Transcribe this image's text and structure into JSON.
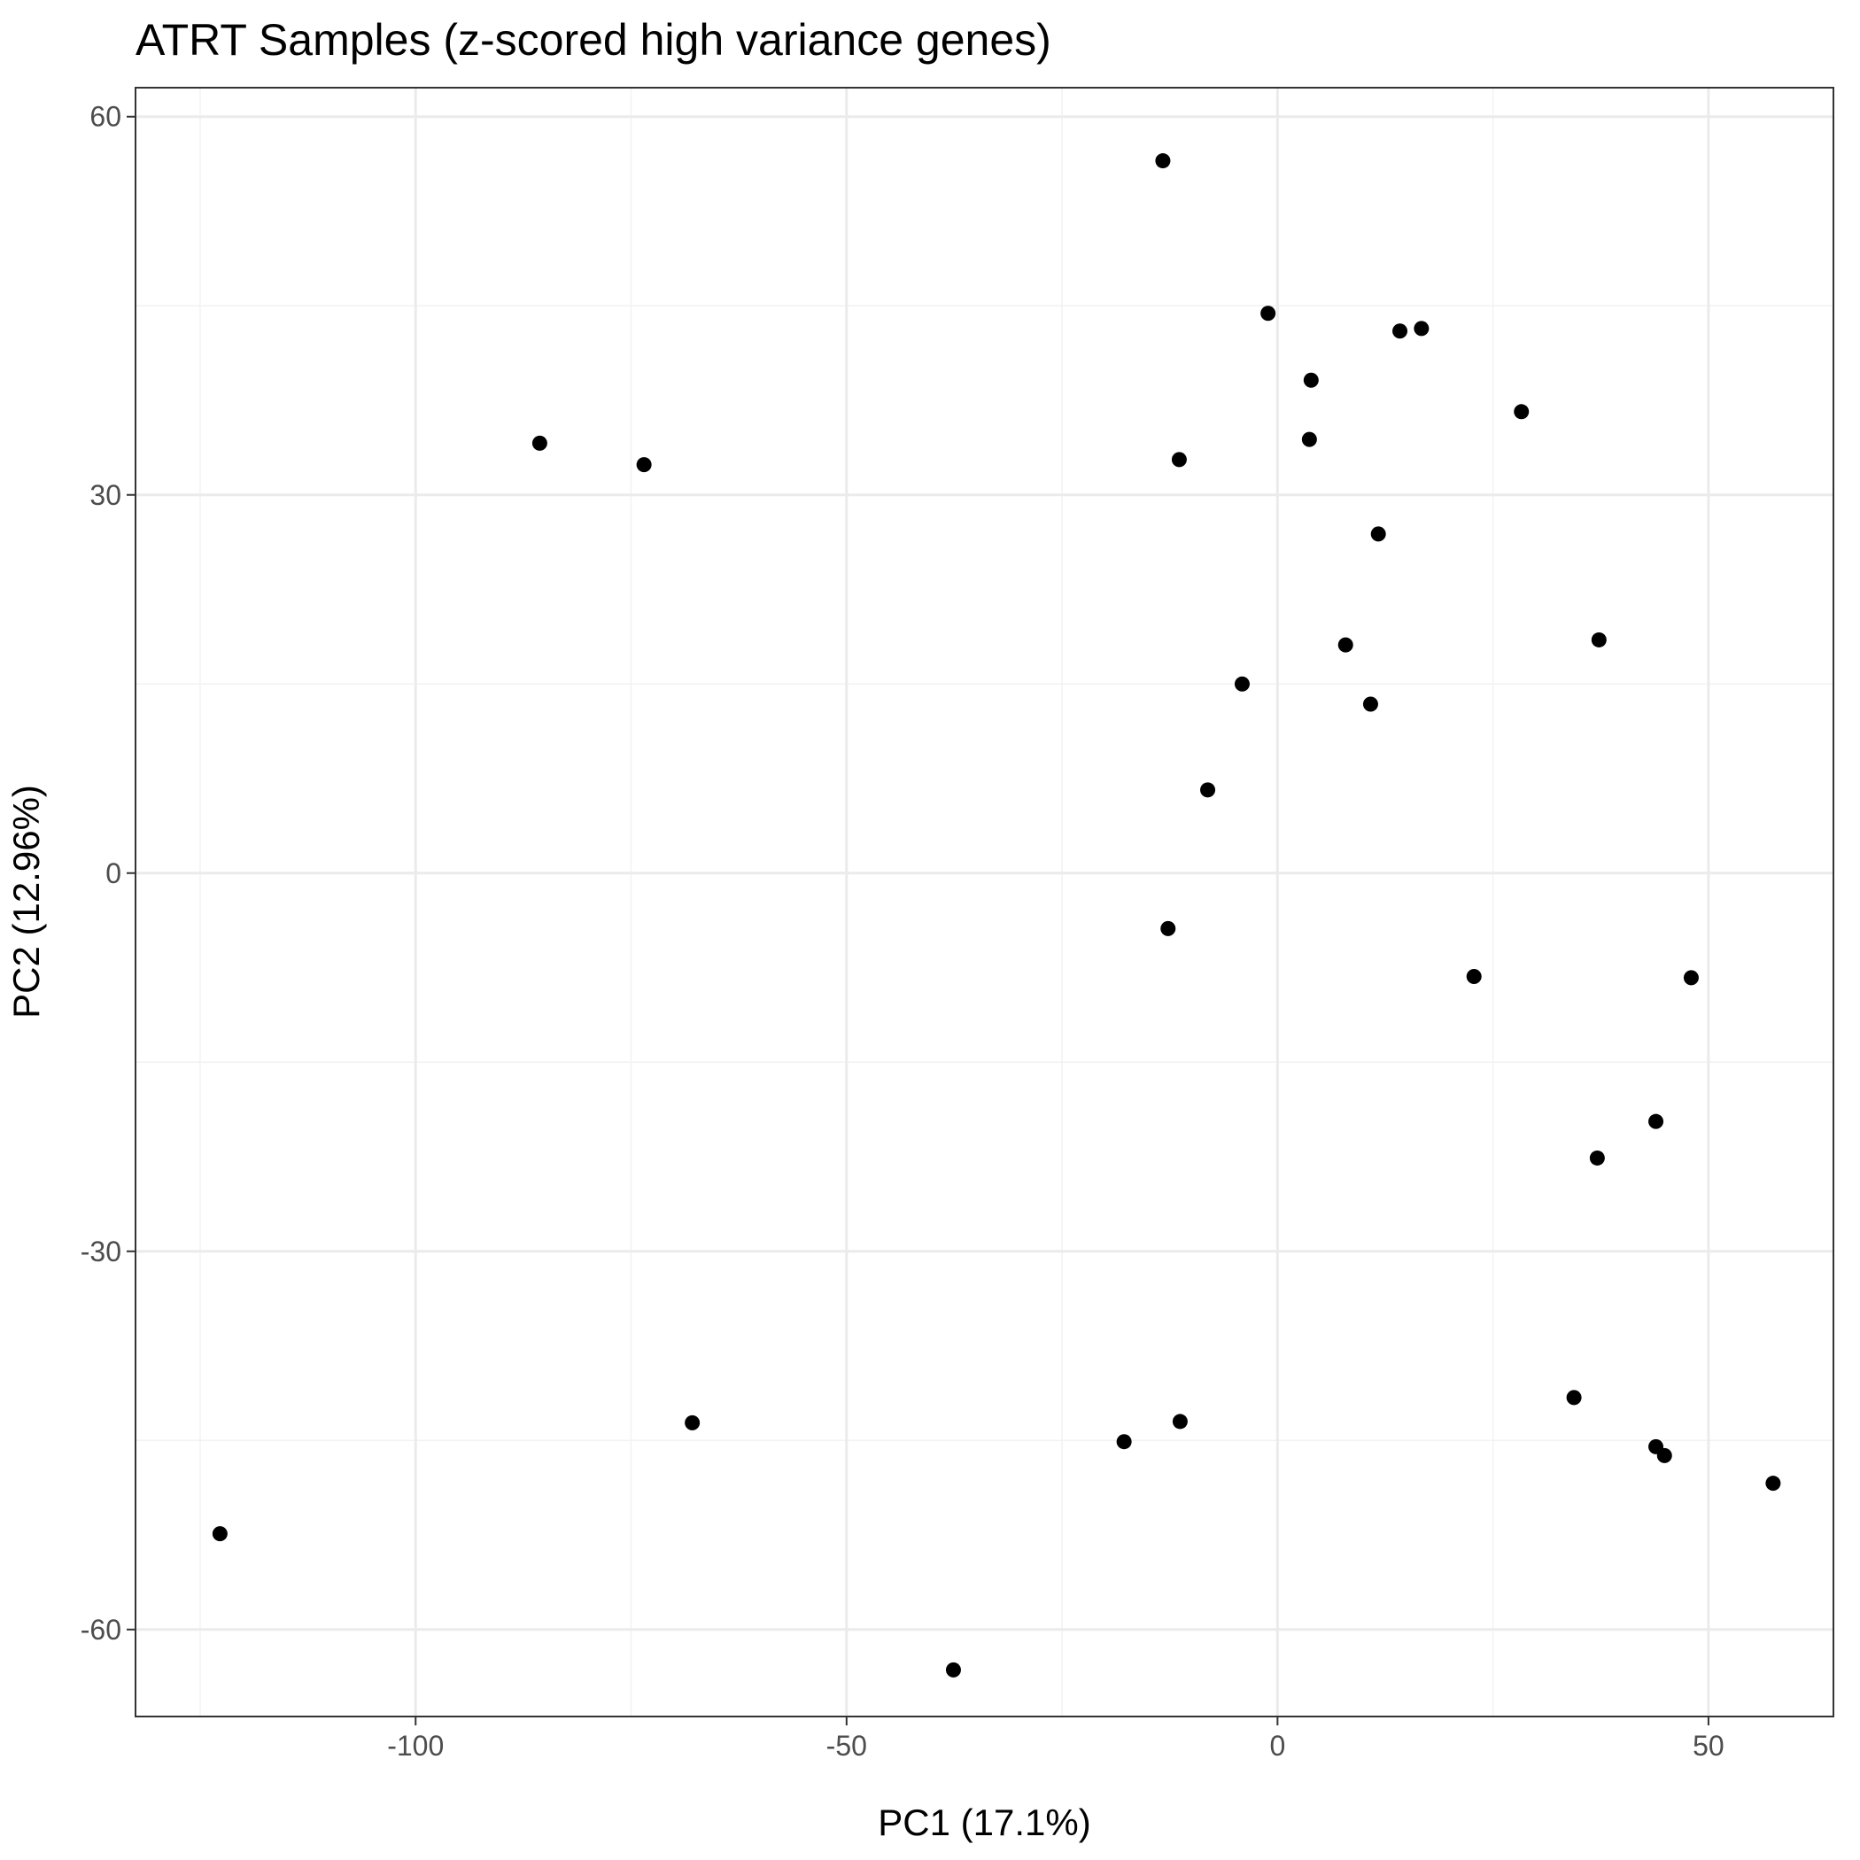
{
  "chart_data": {
    "type": "scatter",
    "title": "ATRT Samples (z-scored high variance genes)",
    "xlabel": "PC1 (17.1%)",
    "ylabel": "PC2 (12.96%)",
    "xlim": [
      -132.5,
      64.5
    ],
    "ylim": [
      -66.9,
      62.3
    ],
    "x_ticks": [
      -100,
      -50,
      0,
      50
    ],
    "x_tick_labels": [
      "-100",
      "-50",
      "0",
      "50"
    ],
    "x_minor": [
      -125,
      -75,
      -25,
      25
    ],
    "y_ticks": [
      60,
      30,
      0,
      -30,
      -60
    ],
    "y_tick_labels": [
      "60",
      "30",
      "0",
      "-30",
      "-60"
    ],
    "y_minor": [
      45,
      15,
      -15,
      -45
    ],
    "grid": true,
    "legend": "none",
    "point_color": "#000000",
    "x": [
      -13.3,
      -1.1,
      14.2,
      16.7,
      3.9,
      28.3,
      -85.6,
      -73.5,
      -11.4,
      3.7,
      11.7,
      7.9,
      37.3,
      -4.1,
      10.8,
      -8.1,
      -12.7,
      22.8,
      48.0,
      43.9,
      37.1,
      -67.9,
      -17.8,
      -11.3,
      34.4,
      43.9,
      44.9,
      57.5,
      -122.7,
      -37.6
    ],
    "y": [
      56.5,
      44.4,
      43.0,
      43.2,
      39.1,
      36.6,
      34.1,
      32.4,
      32.8,
      34.4,
      26.9,
      18.1,
      18.5,
      15.0,
      13.4,
      6.6,
      -4.4,
      -8.2,
      -8.3,
      -19.7,
      -22.6,
      -43.6,
      -45.1,
      -43.5,
      -41.6,
      -45.5,
      -46.2,
      -48.4,
      -52.4,
      -63.2
    ]
  }
}
